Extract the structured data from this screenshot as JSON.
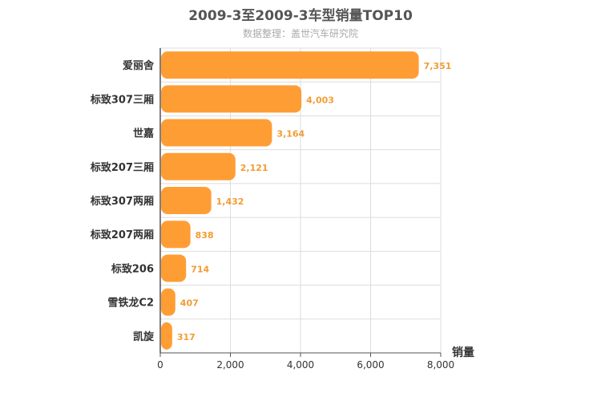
{
  "title": "2009-3至2009-3车型销量TOP10",
  "subtitle": "数据整理：盖世汽车研究院",
  "colors": {
    "bar": "#ff9d35",
    "data_label": "#f39c35",
    "grid": "#dddddd",
    "axis": "#555555"
  },
  "chart_data": {
    "type": "bar",
    "orientation": "horizontal",
    "title": "2009-3至2009-3车型销量TOP10",
    "subtitle": "数据整理：盖世汽车研究院",
    "categories": [
      "爱丽舍",
      "标致307三厢",
      "世嘉",
      "标致207三厢",
      "标致307两厢",
      "标致207两厢",
      "标致206",
      "雪铁龙C2",
      "凯旋"
    ],
    "values": [
      7351,
      4003,
      3164,
      2121,
      1432,
      838,
      714,
      407,
      317
    ],
    "value_labels": [
      "7,351",
      "4,003",
      "3,164",
      "2,121",
      "1,432",
      "838",
      "714",
      "407",
      "317"
    ],
    "xlabel": "销量",
    "ylabel": "",
    "xlim": [
      0,
      8000
    ],
    "xticks": [
      0,
      2000,
      4000,
      6000,
      8000
    ],
    "xtick_labels": [
      "0",
      "2,000",
      "4,000",
      "6,000",
      "8,000"
    ],
    "grid": true
  }
}
